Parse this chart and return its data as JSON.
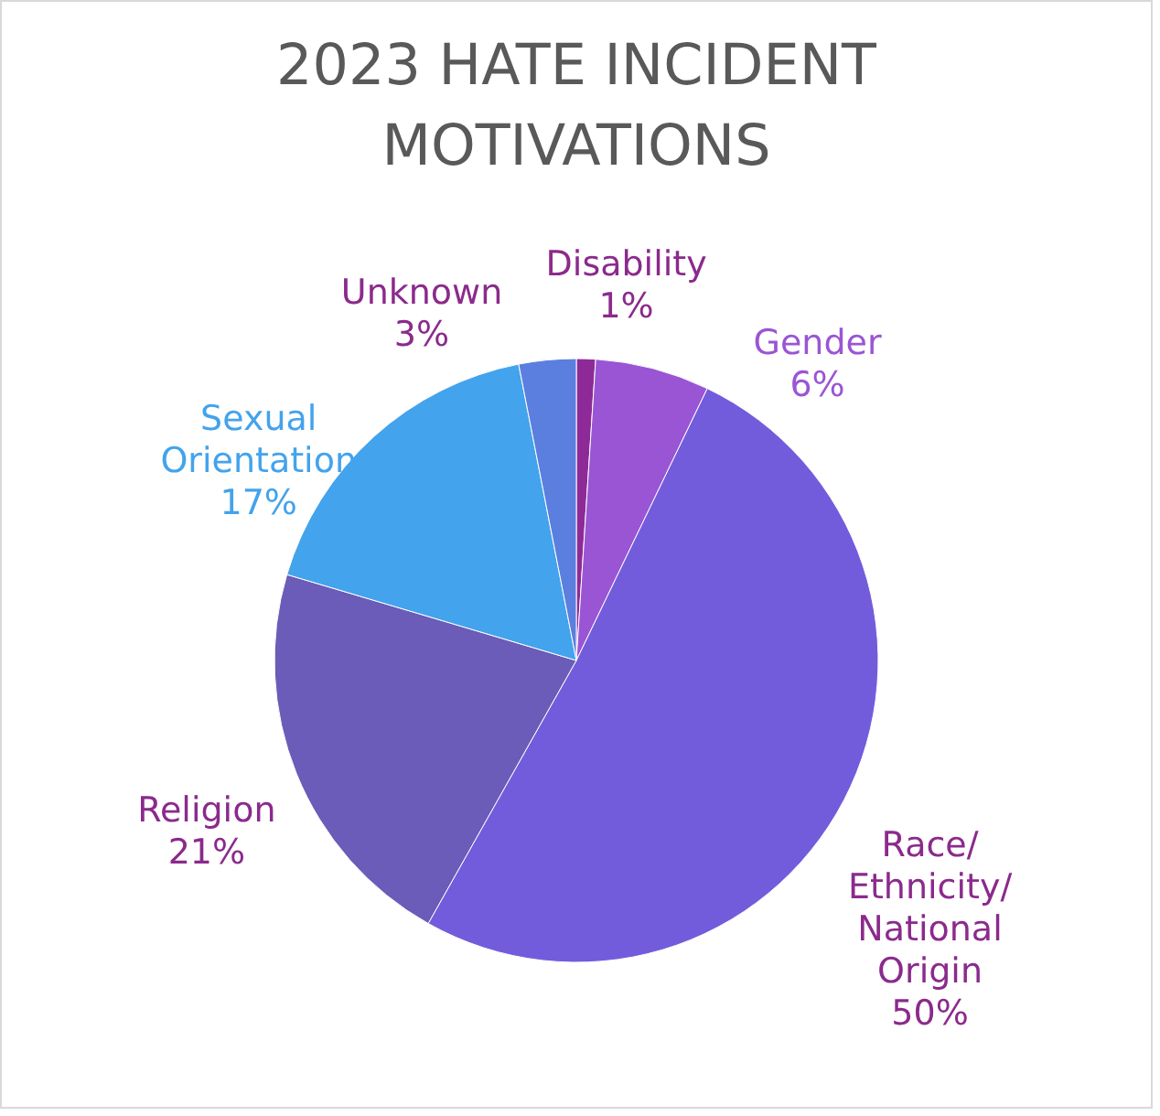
{
  "chart_data": {
    "type": "pie",
    "title": "2023 HATE INCIDENT MOTIVATIONS",
    "categories": [
      "Disability",
      "Gender",
      "Race/Ethnicity/National Origin",
      "Religion",
      "Sexual Orientation",
      "Unknown"
    ],
    "values": [
      1,
      6,
      50,
      21,
      17,
      3
    ],
    "value_labels": [
      "1%",
      "6%",
      "50%",
      "21%",
      "17%",
      "3%"
    ],
    "colors": [
      "#8e2a98",
      "#9a55d4",
      "#735cdc",
      "#6a5cb8",
      "#43a3ec",
      "#5b7fdf"
    ]
  }
}
